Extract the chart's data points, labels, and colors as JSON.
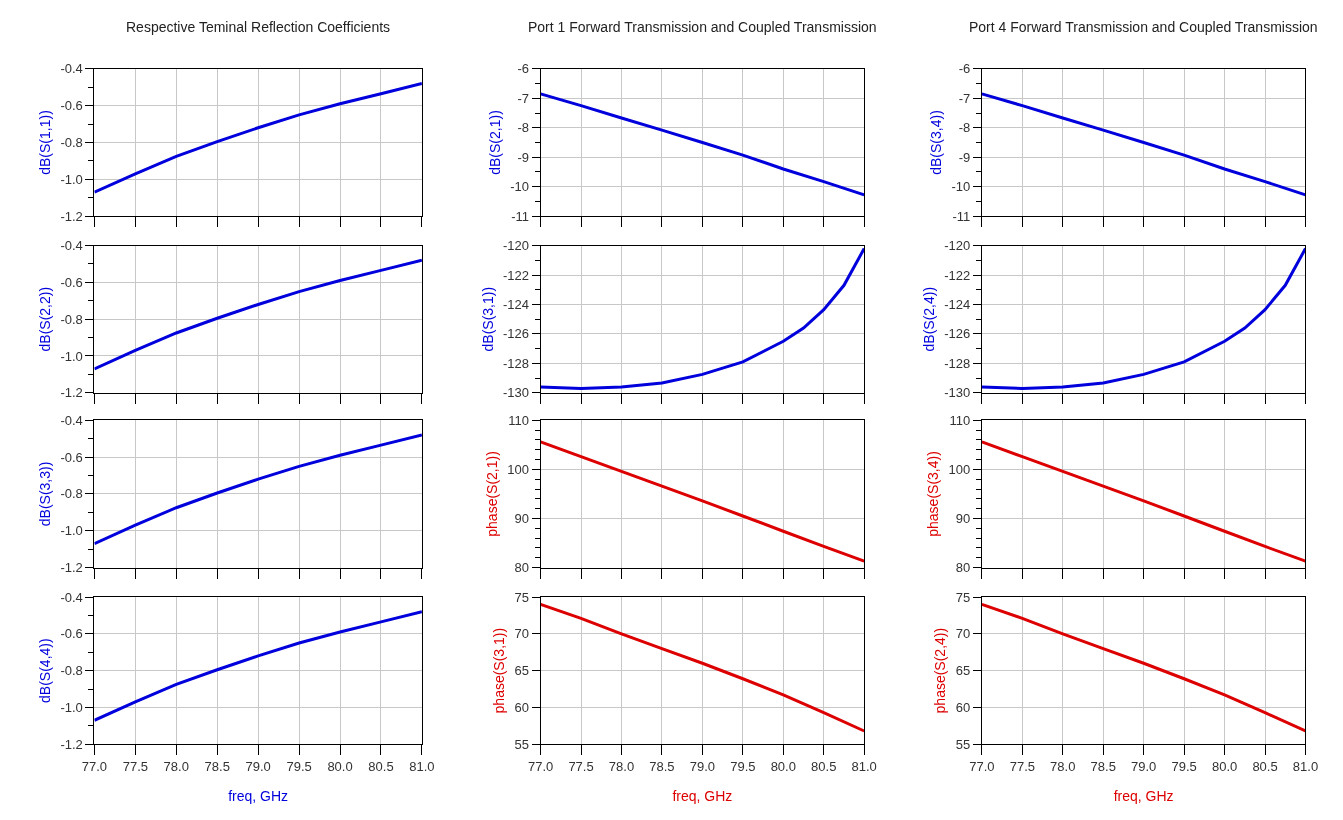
{
  "chart_data": [
    {
      "type": "line",
      "title": "Respective Teminal Reflection Coefficients",
      "ylabel": "dB(S(1,1))",
      "x": [
        77.0,
        77.5,
        78.0,
        78.5,
        79.0,
        79.5,
        80.0,
        80.5,
        81.0
      ],
      "series": [
        {
          "color": "#0000dd",
          "values": [
            -1.07,
            -0.97,
            -0.875,
            -0.795,
            -0.72,
            -0.65,
            -0.59,
            -0.535,
            -0.48
          ]
        }
      ],
      "xlim": [
        77.0,
        81.0
      ],
      "xticks": [
        77,
        77.5,
        78,
        78.5,
        79,
        79.5,
        80,
        80.5,
        81
      ],
      "ylim": [
        -1.2,
        -0.4
      ],
      "yticks": [
        {
          "value": -1.2,
          "label": "-1.2"
        },
        {
          "value": -1.1,
          "label": null
        },
        {
          "value": -1.0,
          "label": "-1.0"
        },
        {
          "value": -0.9,
          "label": null
        },
        {
          "value": -0.8,
          "label": "-0.8"
        },
        {
          "value": -0.7,
          "label": null
        },
        {
          "value": -0.6,
          "label": "-0.6"
        },
        {
          "value": -0.5,
          "label": null
        },
        {
          "value": -0.4,
          "label": "-0.4"
        }
      ],
      "grid": true,
      "tick_labels": "y",
      "marker": "none",
      "line_style": "solid"
    },
    {
      "type": "line",
      "ylabel": "dB(S(2,2))",
      "x": [
        77.0,
        77.5,
        78.0,
        78.5,
        79.0,
        79.5,
        80.0,
        80.5,
        81.0
      ],
      "series": [
        {
          "color": "#0000dd",
          "values": [
            -1.07,
            -0.97,
            -0.875,
            -0.795,
            -0.72,
            -0.65,
            -0.59,
            -0.535,
            -0.48
          ]
        }
      ],
      "xlim": [
        77.0,
        81.0
      ],
      "xticks": [
        77,
        77.5,
        78,
        78.5,
        79,
        79.5,
        80,
        80.5,
        81
      ],
      "ylim": [
        -1.2,
        -0.4
      ],
      "yticks": [
        {
          "value": -1.2,
          "label": "-1.2"
        },
        {
          "value": -1.1,
          "label": null
        },
        {
          "value": -1.0,
          "label": "-1.0"
        },
        {
          "value": -0.9,
          "label": null
        },
        {
          "value": -0.8,
          "label": "-0.8"
        },
        {
          "value": -0.7,
          "label": null
        },
        {
          "value": -0.6,
          "label": "-0.6"
        },
        {
          "value": -0.5,
          "label": null
        },
        {
          "value": -0.4,
          "label": "-0.4"
        }
      ],
      "grid": true,
      "tick_labels": "y",
      "marker": "none",
      "line_style": "solid"
    },
    {
      "type": "line",
      "ylabel": "dB(S(3,3))",
      "x": [
        77.0,
        77.5,
        78.0,
        78.5,
        79.0,
        79.5,
        80.0,
        80.5,
        81.0
      ],
      "series": [
        {
          "color": "#0000dd",
          "values": [
            -1.07,
            -0.97,
            -0.875,
            -0.795,
            -0.72,
            -0.65,
            -0.59,
            -0.535,
            -0.48
          ]
        }
      ],
      "xlim": [
        77.0,
        81.0
      ],
      "xticks": [
        77,
        77.5,
        78,
        78.5,
        79,
        79.5,
        80,
        80.5,
        81
      ],
      "ylim": [
        -1.2,
        -0.4
      ],
      "yticks": [
        {
          "value": -1.2,
          "label": "-1.2"
        },
        {
          "value": -1.1,
          "label": null
        },
        {
          "value": -1.0,
          "label": "-1.0"
        },
        {
          "value": -0.9,
          "label": null
        },
        {
          "value": -0.8,
          "label": "-0.8"
        },
        {
          "value": -0.7,
          "label": null
        },
        {
          "value": -0.6,
          "label": "-0.6"
        },
        {
          "value": -0.5,
          "label": null
        },
        {
          "value": -0.4,
          "label": "-0.4"
        }
      ],
      "grid": true,
      "tick_labels": "y",
      "marker": "none",
      "line_style": "solid"
    },
    {
      "type": "line",
      "ylabel": "dB(S(4,4))",
      "xlabel": "freq, GHz",
      "x": [
        77.0,
        77.5,
        78.0,
        78.5,
        79.0,
        79.5,
        80.0,
        80.5,
        81.0
      ],
      "series": [
        {
          "color": "#0000dd",
          "values": [
            -1.07,
            -0.97,
            -0.875,
            -0.795,
            -0.72,
            -0.65,
            -0.59,
            -0.535,
            -0.48
          ]
        }
      ],
      "xlim": [
        77.0,
        81.0
      ],
      "xticks": [
        {
          "value": 77,
          "label": "77.0"
        },
        {
          "value": 77.5,
          "label": "77.5"
        },
        {
          "value": 78,
          "label": "78.0"
        },
        {
          "value": 78.5,
          "label": "78.5"
        },
        {
          "value": 79,
          "label": "79.0"
        },
        {
          "value": 79.5,
          "label": "79.5"
        },
        {
          "value": 80,
          "label": "80.0"
        },
        {
          "value": 80.5,
          "label": "80.5"
        },
        {
          "value": 81,
          "label": "81.0"
        }
      ],
      "ylim": [
        -1.2,
        -0.4
      ],
      "yticks": [
        {
          "value": -1.2,
          "label": "-1.2"
        },
        {
          "value": -1.1,
          "label": null
        },
        {
          "value": -1.0,
          "label": "-1.0"
        },
        {
          "value": -0.9,
          "label": null
        },
        {
          "value": -0.8,
          "label": "-0.8"
        },
        {
          "value": -0.7,
          "label": null
        },
        {
          "value": -0.6,
          "label": "-0.6"
        },
        {
          "value": -0.5,
          "label": null
        },
        {
          "value": -0.4,
          "label": "-0.4"
        }
      ],
      "grid": true,
      "marker": "none",
      "line_style": "solid"
    },
    {
      "type": "line",
      "title": "Port 1 Forward Transmission and Coupled Transmission",
      "ylabel": "dB(S(2,1))",
      "x": [
        77.0,
        77.5,
        78.0,
        78.5,
        79.0,
        79.5,
        80.0,
        80.5,
        81.0
      ],
      "series": [
        {
          "color": "#0000dd",
          "values": [
            -6.85,
            -7.25,
            -7.67,
            -8.08,
            -8.5,
            -8.93,
            -9.4,
            -9.83,
            -10.28
          ]
        }
      ],
      "xlim": [
        77.0,
        81.0
      ],
      "xticks": [
        77,
        77.5,
        78,
        78.5,
        79,
        79.5,
        80,
        80.5,
        81
      ],
      "ylim": [
        -11,
        -6
      ],
      "yticks": [
        -11,
        {
          "value": -10.5,
          "label": null
        },
        -10,
        {
          "value": -9.5,
          "label": null
        },
        -9,
        {
          "value": -8.5,
          "label": null
        },
        -8,
        {
          "value": -7.5,
          "label": null
        },
        -7,
        {
          "value": -6.5,
          "label": null
        },
        -6
      ],
      "grid": true,
      "tick_labels": "y",
      "marker": "none",
      "line_style": "solid"
    },
    {
      "type": "line",
      "ylabel": "dB(S(3,1))",
      "x": [
        77.0,
        77.5,
        78.0,
        78.5,
        79.0,
        79.5,
        80.0,
        80.25,
        80.5,
        80.75,
        81.0
      ],
      "series": [
        {
          "color": "#0000dd",
          "values": [
            -129.6,
            -129.7,
            -129.6,
            -129.33,
            -128.75,
            -127.9,
            -126.5,
            -125.6,
            -124.35,
            -122.7,
            -120.2
          ]
        }
      ],
      "xlim": [
        77.0,
        81.0
      ],
      "xticks": [
        77,
        77.5,
        78,
        78.5,
        79,
        79.5,
        80,
        80.5,
        81
      ],
      "ylim": [
        -130,
        -120
      ],
      "yticks": [
        -130,
        {
          "value": -129,
          "label": null
        },
        -128,
        {
          "value": -127,
          "label": null
        },
        -126,
        {
          "value": -125,
          "label": null
        },
        -124,
        {
          "value": -123,
          "label": null
        },
        -122,
        {
          "value": -121,
          "label": null
        },
        -120
      ],
      "grid": true,
      "tick_labels": "y",
      "marker": "none",
      "line_style": "solid"
    },
    {
      "type": "line",
      "ylabel": "phase(S(2,1))",
      "x": [
        77.0,
        77.5,
        78.0,
        78.5,
        79.0,
        79.5,
        80.0,
        80.5,
        81.0
      ],
      "series": [
        {
          "color": "#dd0000",
          "values": [
            105.6,
            102.6,
            99.6,
            96.6,
            93.6,
            90.5,
            87.4,
            84.3,
            81.3
          ]
        }
      ],
      "xlim": [
        77.0,
        81.0
      ],
      "xticks": [
        77,
        77.5,
        78,
        78.5,
        79,
        79.5,
        80,
        80.5,
        81
      ],
      "ylim": [
        80,
        110
      ],
      "yticks": [
        80,
        {
          "value": 82,
          "label": null
        },
        {
          "value": 84,
          "label": null
        },
        {
          "value": 86,
          "label": null
        },
        {
          "value": 88,
          "label": null
        },
        90,
        {
          "value": 92,
          "label": null
        },
        {
          "value": 94,
          "label": null
        },
        {
          "value": 96,
          "label": null
        },
        {
          "value": 98,
          "label": null
        },
        100,
        {
          "value": 102,
          "label": null
        },
        {
          "value": 104,
          "label": null
        },
        {
          "value": 106,
          "label": null
        },
        {
          "value": 108,
          "label": null
        },
        110
      ],
      "grid": true,
      "tick_labels": "y",
      "marker": "none",
      "line_style": "solid"
    },
    {
      "type": "line",
      "ylabel": "phase(S(3,1))",
      "xlabel": "freq, GHz",
      "x": [
        77.0,
        77.5,
        78.0,
        78.5,
        79.0,
        79.5,
        80.0,
        80.5,
        81.0
      ],
      "series": [
        {
          "color": "#dd0000",
          "values": [
            74.0,
            72.1,
            70.0,
            68.0,
            66.0,
            63.9,
            61.7,
            59.3,
            56.8
          ]
        }
      ],
      "xlim": [
        77.0,
        81.0
      ],
      "xticks": [
        {
          "value": 77,
          "label": "77.0"
        },
        {
          "value": 77.5,
          "label": "77.5"
        },
        {
          "value": 78,
          "label": "78.0"
        },
        {
          "value": 78.5,
          "label": "78.5"
        },
        {
          "value": 79,
          "label": "79.0"
        },
        {
          "value": 79.5,
          "label": "79.5"
        },
        {
          "value": 80,
          "label": "80.0"
        },
        {
          "value": 80.5,
          "label": "80.5"
        },
        {
          "value": 81,
          "label": "81.0"
        }
      ],
      "ylim": [
        55,
        75
      ],
      "yticks": [
        55,
        60,
        65,
        70,
        75
      ],
      "grid": true,
      "marker": "none",
      "line_style": "solid"
    },
    {
      "type": "line",
      "title": "Port 4 Forward Transmission and Coupled Transmission",
      "ylabel": "dB(S(3,4))",
      "x": [
        77.0,
        77.5,
        78.0,
        78.5,
        79.0,
        79.5,
        80.0,
        80.5,
        81.0
      ],
      "series": [
        {
          "color": "#0000dd",
          "values": [
            -6.85,
            -7.25,
            -7.67,
            -8.08,
            -8.5,
            -8.93,
            -9.4,
            -9.83,
            -10.28
          ]
        }
      ],
      "xlim": [
        77.0,
        81.0
      ],
      "xticks": [
        77,
        77.5,
        78,
        78.5,
        79,
        79.5,
        80,
        80.5,
        81
      ],
      "ylim": [
        -11,
        -6
      ],
      "yticks": [
        -11,
        {
          "value": -10.5,
          "label": null
        },
        -10,
        {
          "value": -9.5,
          "label": null
        },
        -9,
        {
          "value": -8.5,
          "label": null
        },
        -8,
        {
          "value": -7.5,
          "label": null
        },
        -7,
        {
          "value": -6.5,
          "label": null
        },
        -6
      ],
      "grid": true,
      "tick_labels": "y",
      "marker": "none",
      "line_style": "solid"
    },
    {
      "type": "line",
      "ylabel": "dB(S(2,4))",
      "x": [
        77.0,
        77.5,
        78.0,
        78.5,
        79.0,
        79.5,
        80.0,
        80.25,
        80.5,
        80.75,
        81.0
      ],
      "series": [
        {
          "color": "#0000dd",
          "values": [
            -129.6,
            -129.7,
            -129.6,
            -129.33,
            -128.75,
            -127.9,
            -126.5,
            -125.6,
            -124.35,
            -122.7,
            -120.2
          ]
        }
      ],
      "xlim": [
        77.0,
        81.0
      ],
      "xticks": [
        77,
        77.5,
        78,
        78.5,
        79,
        79.5,
        80,
        80.5,
        81
      ],
      "ylim": [
        -130,
        -120
      ],
      "yticks": [
        -130,
        {
          "value": -129,
          "label": null
        },
        -128,
        {
          "value": -127,
          "label": null
        },
        -126,
        {
          "value": -125,
          "label": null
        },
        -124,
        {
          "value": -123,
          "label": null
        },
        -122,
        {
          "value": -121,
          "label": null
        },
        -120
      ],
      "grid": true,
      "tick_labels": "y",
      "marker": "none",
      "line_style": "solid"
    },
    {
      "type": "line",
      "ylabel": "phase(S(3,4))",
      "x": [
        77.0,
        77.5,
        78.0,
        78.5,
        79.0,
        79.5,
        80.0,
        80.5,
        81.0
      ],
      "series": [
        {
          "color": "#dd0000",
          "values": [
            105.6,
            102.6,
            99.6,
            96.6,
            93.6,
            90.5,
            87.4,
            84.3,
            81.3
          ]
        }
      ],
      "xlim": [
        77.0,
        81.0
      ],
      "xticks": [
        77,
        77.5,
        78,
        78.5,
        79,
        79.5,
        80,
        80.5,
        81
      ],
      "ylim": [
        80,
        110
      ],
      "yticks": [
        80,
        {
          "value": 82,
          "label": null
        },
        {
          "value": 84,
          "label": null
        },
        {
          "value": 86,
          "label": null
        },
        {
          "value": 88,
          "label": null
        },
        90,
        {
          "value": 92,
          "label": null
        },
        {
          "value": 94,
          "label": null
        },
        {
          "value": 96,
          "label": null
        },
        {
          "value": 98,
          "label": null
        },
        100,
        {
          "value": 102,
          "label": null
        },
        {
          "value": 104,
          "label": null
        },
        {
          "value": 106,
          "label": null
        },
        {
          "value": 108,
          "label": null
        },
        110
      ],
      "grid": true,
      "tick_labels": "y",
      "marker": "none",
      "line_style": "solid"
    },
    {
      "type": "line",
      "ylabel": "phase(S(2,4))",
      "xlabel": "freq, GHz",
      "x": [
        77.0,
        77.5,
        78.0,
        78.5,
        79.0,
        79.5,
        80.0,
        80.5,
        81.0
      ],
      "series": [
        {
          "color": "#dd0000",
          "values": [
            74.0,
            72.1,
            70.0,
            68.0,
            66.0,
            63.9,
            61.7,
            59.3,
            56.8
          ]
        }
      ],
      "xlim": [
        77.0,
        81.0
      ],
      "xticks": [
        {
          "value": 77,
          "label": "77.0"
        },
        {
          "value": 77.5,
          "label": "77.5"
        },
        {
          "value": 78,
          "label": "78.0"
        },
        {
          "value": 78.5,
          "label": "78.5"
        },
        {
          "value": 79,
          "label": "79.0"
        },
        {
          "value": 79.5,
          "label": "79.5"
        },
        {
          "value": 80,
          "label": "80.0"
        },
        {
          "value": 80.5,
          "label": "80.5"
        },
        {
          "value": 81,
          "label": "81.0"
        }
      ],
      "ylim": [
        55,
        75
      ],
      "yticks": [
        55,
        60,
        65,
        70,
        75
      ],
      "grid": true,
      "marker": "none",
      "line_style": "solid"
    }
  ]
}
